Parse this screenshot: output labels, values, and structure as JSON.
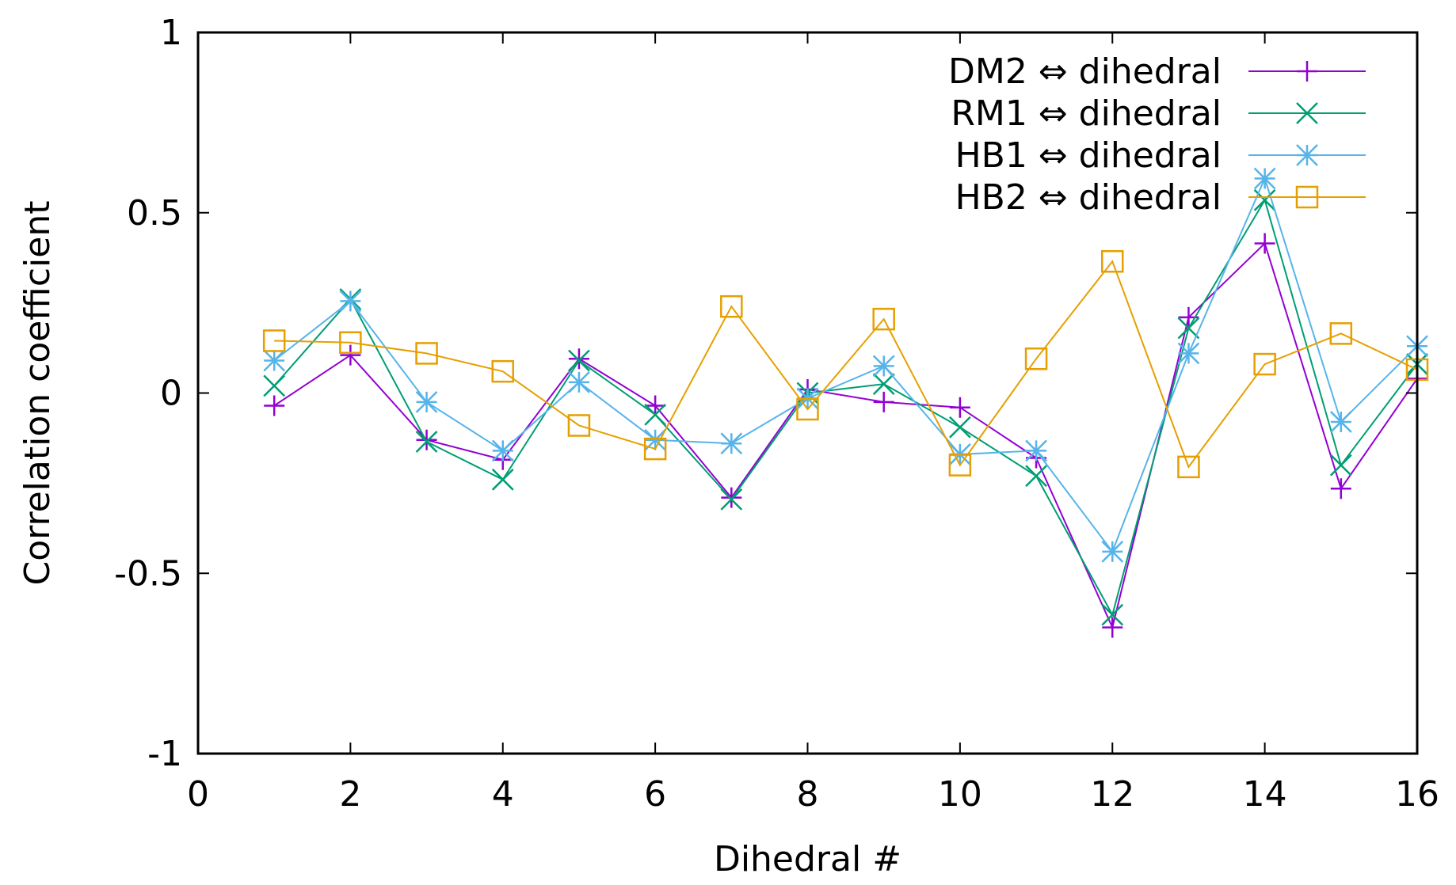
{
  "chart_data": {
    "type": "line",
    "title": "",
    "xlabel": "Dihedral #",
    "ylabel": "Correlation coefficient",
    "xlim": [
      0,
      16
    ],
    "ylim": [
      -1,
      1
    ],
    "xticks": [
      0,
      2,
      4,
      6,
      8,
      10,
      12,
      14,
      16
    ],
    "yticks": [
      -1,
      -0.5,
      0,
      0.5,
      1
    ],
    "xtick_labels": [
      "0",
      "2",
      "4",
      "6",
      "8",
      "10",
      "12",
      "14",
      "16"
    ],
    "ytick_labels": [
      "-1",
      "-0.5",
      "0",
      "0.5",
      "1"
    ],
    "grid": false,
    "legend_position": "top-right",
    "x": [
      1,
      2,
      3,
      4,
      5,
      6,
      7,
      8,
      9,
      10,
      11,
      12,
      13,
      14,
      15,
      16
    ],
    "series": [
      {
        "name": "DM2 ⇔ dihedral",
        "color": "#9400d3",
        "marker": "plus",
        "values": [
          -0.035,
          0.105,
          -0.13,
          -0.185,
          0.095,
          -0.035,
          -0.29,
          0.01,
          -0.025,
          -0.04,
          -0.18,
          -0.65,
          0.21,
          0.415,
          -0.265,
          0.04
        ]
      },
      {
        "name": "RM1 ⇔ dihedral",
        "color": "#009e73",
        "marker": "cross",
        "values": [
          0.02,
          0.26,
          -0.135,
          -0.24,
          0.09,
          -0.06,
          -0.295,
          0.0,
          0.025,
          -0.095,
          -0.23,
          -0.615,
          0.18,
          0.535,
          -0.2,
          0.08
        ]
      },
      {
        "name": "HB1 ⇔ dihedral",
        "color": "#56b4e9",
        "marker": "star",
        "values": [
          0.09,
          0.255,
          -0.025,
          -0.16,
          0.03,
          -0.13,
          -0.14,
          -0.015,
          0.075,
          -0.17,
          -0.16,
          -0.44,
          0.11,
          0.595,
          -0.08,
          0.13
        ]
      },
      {
        "name": "HB2 ⇔ dihedral",
        "color": "#e69f00",
        "marker": "square",
        "values": [
          0.145,
          0.14,
          0.11,
          0.06,
          -0.09,
          -0.155,
          0.24,
          -0.045,
          0.205,
          -0.2,
          0.095,
          0.365,
          -0.205,
          0.08,
          0.165,
          0.065
        ]
      }
    ]
  }
}
